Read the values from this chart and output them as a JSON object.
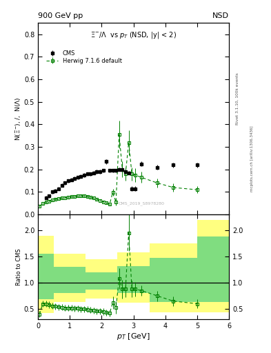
{
  "title_top_left": "900 GeV pp",
  "title_top_right": "NSD",
  "plot_title": "$\\Xi^{-}/\\Lambda$  vs $p_{T}$ (NSD, |y| < 2)",
  "xlabel": "$p_{T}$ [GeV]",
  "ylabel_main": "N($\\Xi^{-}$), /,  N($\\Lambda$)",
  "ylabel_ratio": "Ratio to CMS",
  "right_label_top": "Rivet 3.1.10, 100k events",
  "right_label_bottom": "mcplots.cern.ch [arXiv:1306.3436]",
  "watermark": "CMS_2019_S8978280",
  "legend_cms": "CMS",
  "legend_herwig": "Herwig 7.1.6 default",
  "cms_x": [
    0.25,
    0.35,
    0.45,
    0.55,
    0.65,
    0.75,
    0.85,
    0.95,
    1.05,
    1.15,
    1.25,
    1.35,
    1.45,
    1.55,
    1.65,
    1.75,
    1.85,
    1.95,
    2.05,
    2.15,
    2.25,
    2.35,
    2.45,
    2.55,
    2.65,
    2.75,
    2.85,
    2.95,
    3.05,
    3.25,
    3.75,
    4.25,
    5.0
  ],
  "cms_y": [
    0.075,
    0.082,
    0.1,
    0.105,
    0.115,
    0.13,
    0.14,
    0.15,
    0.155,
    0.16,
    0.165,
    0.17,
    0.175,
    0.18,
    0.18,
    0.185,
    0.19,
    0.19,
    0.195,
    0.235,
    0.195,
    0.195,
    0.195,
    0.2,
    0.2,
    0.19,
    0.185,
    0.115,
    0.115,
    0.225,
    0.21,
    0.22,
    0.22
  ],
  "cms_yerr": [
    0.008,
    0.008,
    0.008,
    0.008,
    0.008,
    0.008,
    0.008,
    0.008,
    0.008,
    0.008,
    0.008,
    0.008,
    0.008,
    0.008,
    0.008,
    0.008,
    0.008,
    0.008,
    0.008,
    0.01,
    0.008,
    0.008,
    0.008,
    0.008,
    0.008,
    0.008,
    0.008,
    0.01,
    0.01,
    0.01,
    0.01,
    0.01,
    0.01
  ],
  "herwig_x": [
    0.05,
    0.15,
    0.25,
    0.35,
    0.45,
    0.55,
    0.65,
    0.75,
    0.85,
    0.95,
    1.05,
    1.15,
    1.25,
    1.35,
    1.45,
    1.55,
    1.65,
    1.75,
    1.85,
    1.95,
    2.05,
    2.15,
    2.25,
    2.35,
    2.45,
    2.55,
    2.65,
    2.75,
    2.85,
    2.95,
    3.05,
    3.25,
    3.75,
    4.25,
    5.0
  ],
  "herwig_y": [
    0.038,
    0.048,
    0.055,
    0.06,
    0.064,
    0.068,
    0.07,
    0.073,
    0.075,
    0.077,
    0.079,
    0.08,
    0.082,
    0.083,
    0.083,
    0.08,
    0.077,
    0.073,
    0.068,
    0.063,
    0.057,
    0.052,
    0.046,
    0.098,
    0.055,
    0.355,
    0.2,
    0.18,
    0.32,
    0.18,
    0.175,
    0.165,
    0.14,
    0.12,
    0.11
  ],
  "herwig_yerr": [
    0.005,
    0.005,
    0.005,
    0.005,
    0.005,
    0.005,
    0.005,
    0.005,
    0.005,
    0.005,
    0.005,
    0.005,
    0.005,
    0.005,
    0.005,
    0.005,
    0.005,
    0.005,
    0.005,
    0.005,
    0.005,
    0.005,
    0.005,
    0.015,
    0.015,
    0.06,
    0.035,
    0.03,
    0.055,
    0.03,
    0.03,
    0.025,
    0.02,
    0.018,
    0.015
  ],
  "ratio_herwig_x": [
    0.05,
    0.15,
    0.25,
    0.35,
    0.45,
    0.55,
    0.65,
    0.75,
    0.85,
    0.95,
    1.05,
    1.15,
    1.25,
    1.35,
    1.45,
    1.55,
    1.65,
    1.75,
    1.85,
    1.95,
    2.05,
    2.15,
    2.25,
    2.35,
    2.45,
    2.55,
    2.65,
    2.75,
    2.85,
    2.95,
    3.05,
    3.25,
    3.75,
    4.25,
    5.0
  ],
  "ratio_herwig_y": [
    0.4,
    0.6,
    0.6,
    0.58,
    0.56,
    0.55,
    0.54,
    0.53,
    0.52,
    0.52,
    0.52,
    0.51,
    0.51,
    0.5,
    0.5,
    0.49,
    0.48,
    0.47,
    0.46,
    0.46,
    0.45,
    0.43,
    0.42,
    0.62,
    0.53,
    1.08,
    0.88,
    0.88,
    1.95,
    0.88,
    0.88,
    0.85,
    0.75,
    0.65,
    0.6
  ],
  "ratio_herwig_yerr": [
    0.06,
    0.06,
    0.06,
    0.06,
    0.06,
    0.06,
    0.06,
    0.06,
    0.06,
    0.06,
    0.06,
    0.06,
    0.06,
    0.06,
    0.06,
    0.06,
    0.06,
    0.06,
    0.06,
    0.06,
    0.06,
    0.06,
    0.06,
    0.12,
    0.12,
    0.2,
    0.18,
    0.16,
    0.35,
    0.16,
    0.14,
    0.1,
    0.1,
    0.09,
    0.09
  ],
  "band_yellow_edges": [
    0.0,
    0.5,
    1.5,
    2.5,
    3.5,
    5.0,
    6.0
  ],
  "band_yellow_lo": [
    0.42,
    0.63,
    0.7,
    0.62,
    0.44,
    0.44,
    0.44
  ],
  "band_yellow_hi": [
    1.9,
    1.55,
    1.45,
    1.58,
    1.75,
    2.2,
    2.2
  ],
  "band_green_edges": [
    0.0,
    0.5,
    1.5,
    2.5,
    3.5,
    5.0,
    6.0
  ],
  "band_green_lo": [
    0.68,
    0.8,
    0.87,
    0.8,
    0.63,
    0.63,
    0.63
  ],
  "band_green_hi": [
    1.55,
    1.3,
    1.2,
    1.32,
    1.48,
    1.88,
    1.88
  ],
  "xlim": [
    0,
    6.0
  ],
  "ylim_main": [
    0,
    0.85
  ],
  "ylim_ratio": [
    0.3,
    2.3
  ],
  "yticks_main": [
    0.0,
    0.1,
    0.2,
    0.3,
    0.4,
    0.5,
    0.6,
    0.7,
    0.8
  ],
  "yticks_ratio": [
    0.5,
    1.0,
    1.5,
    2.0
  ],
  "xticks": [
    0,
    1,
    2,
    3,
    4,
    5,
    6
  ],
  "color_cms": "#000000",
  "color_herwig": "#008000",
  "color_yellow": "#ffff80",
  "color_green_band": "#80dd80",
  "background_color": "#ffffff"
}
